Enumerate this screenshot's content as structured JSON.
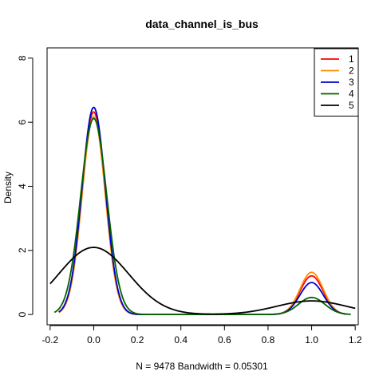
{
  "chart_data": {
    "type": "line",
    "title": "data_channel_is_bus",
    "xlabel": "N = 9478   Bandwidth = 0.05301",
    "ylabel": "Density",
    "xlim": [
      -0.2,
      1.2
    ],
    "ylim": [
      0,
      8
    ],
    "x_ticks": [
      "-0.2",
      "0.0",
      "0.2",
      "0.4",
      "0.6",
      "0.8",
      "1.0",
      "1.2"
    ],
    "y_ticks": [
      "0",
      "2",
      "4",
      "6",
      "8"
    ],
    "legend_position": "top-right",
    "grid": false,
    "series": [
      {
        "name": "1",
        "color": "#ff0000",
        "bandwidth": 0.053,
        "range": [
          -0.16,
          1.16
        ],
        "components": [
          {
            "center": 0.0,
            "weight": 0.84
          },
          {
            "center": 1.0,
            "weight": 0.16
          }
        ]
      },
      {
        "name": "2",
        "color": "#ff8c00",
        "bandwidth": 0.053,
        "range": [
          -0.16,
          1.16
        ],
        "components": [
          {
            "center": 0.0,
            "weight": 0.82
          },
          {
            "center": 1.0,
            "weight": 0.175
          }
        ]
      },
      {
        "name": "3",
        "color": "#0000cd",
        "bandwidth": 0.054,
        "range": [
          -0.16,
          1.16
        ],
        "components": [
          {
            "center": 0.0,
            "weight": 0.875
          },
          {
            "center": 1.0,
            "weight": 0.135
          }
        ]
      },
      {
        "name": "4",
        "color": "#006400",
        "bandwidth": 0.06,
        "range": [
          -0.18,
          1.18
        ],
        "components": [
          {
            "center": 0.0,
            "weight": 0.92
          },
          {
            "center": 1.0,
            "weight": 0.08
          }
        ]
      },
      {
        "name": "5",
        "color": "#000000",
        "bandwidth": 0.16,
        "range": [
          -0.2,
          1.2
        ],
        "components": [
          {
            "center": 0.0,
            "weight": 0.84
          },
          {
            "center": 1.0,
            "weight": 0.17
          }
        ]
      }
    ]
  }
}
